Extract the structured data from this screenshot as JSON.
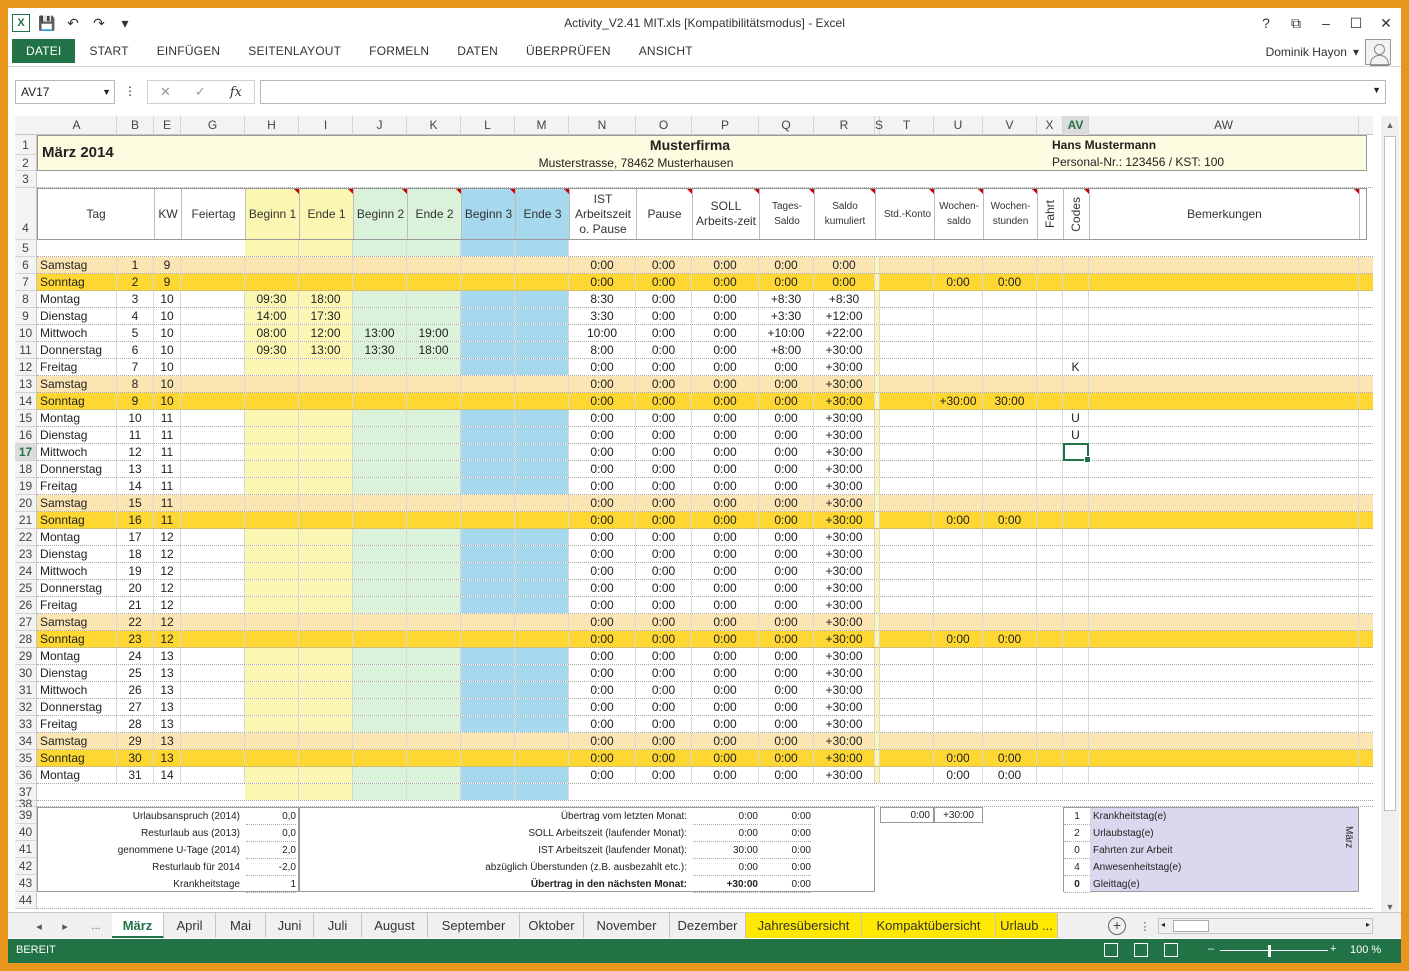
{
  "window": {
    "title": "Activity_V2.41 MIT.xls  [Kompatibilitätsmodus] - Excel",
    "controls": [
      "?",
      "⧉",
      "–",
      "☐",
      "✕"
    ]
  },
  "ribbon": {
    "file_tab": "DATEI",
    "tabs": [
      "START",
      "EINFÜGEN",
      "SEITENLAYOUT",
      "FORMELN",
      "DATEN",
      "ÜBERPRÜFEN",
      "ANSICHT"
    ],
    "user": "Dominik Hayon"
  },
  "formula_bar": {
    "name_box": "AV17",
    "fx": "fx",
    "value": ""
  },
  "columns": [
    "A",
    "B",
    "E",
    "G",
    "H",
    "I",
    "J",
    "K",
    "L",
    "M",
    "N",
    "O",
    "P",
    "Q",
    "R",
    "S",
    "T",
    "U",
    "V",
    "X",
    "AV",
    "AW"
  ],
  "selected_column": "AV",
  "selected_row": "17",
  "header": {
    "month": "März 2014",
    "company": "Musterfirma",
    "address": "Musterstrasse, 78462 Musterhausen",
    "employee": "Hans Mustermann",
    "personnel": "Personal-Nr.: 123456 / KST: 100"
  },
  "table_headers": {
    "tag": "Tag",
    "kw": "KW",
    "feiertag": "Feiertag",
    "beginn1": "Beginn 1",
    "ende1": "Ende 1",
    "beginn2": "Beginn 2",
    "ende2": "Ende 2",
    "beginn3": "Beginn 3",
    "ende3": "Ende 3",
    "ist": "IST Arbeitszeit o. Pause",
    "pause": "Pause",
    "soll": "SOLL Arbeits-zeit",
    "tages": "Tages-Saldo",
    "saldo": "Saldo kumuliert",
    "std": "Std.-Konto",
    "wochensaldo": "Wochen-saldo",
    "wochenstunden": "Wochen-stunden",
    "fahrt": "Fahrt",
    "codes": "Codes",
    "bemerkungen": "Bemerkungen"
  },
  "days": [
    {
      "day": "Samstag",
      "n": "1",
      "kw": "9",
      "b1": "",
      "e1": "",
      "b2": "",
      "e2": "",
      "ist": "0:00",
      "pause": "0:00",
      "soll": "0:00",
      "tages": "0:00",
      "saldo": "0:00",
      "ws": "",
      "wst": "",
      "code": "",
      "type": "sa"
    },
    {
      "day": "Sonntag",
      "n": "2",
      "kw": "9",
      "b1": "",
      "e1": "",
      "b2": "",
      "e2": "",
      "ist": "0:00",
      "pause": "0:00",
      "soll": "0:00",
      "tages": "0:00",
      "saldo": "0:00",
      "ws": "0:00",
      "wst": "0:00",
      "code": "",
      "type": "so"
    },
    {
      "day": "Montag",
      "n": "3",
      "kw": "10",
      "b1": "09:30",
      "e1": "18:00",
      "b2": "",
      "e2": "",
      "ist": "8:30",
      "pause": "0:00",
      "soll": "0:00",
      "tages": "+8:30",
      "saldo": "+8:30",
      "ws": "",
      "wst": "",
      "code": "",
      "type": ""
    },
    {
      "day": "Dienstag",
      "n": "4",
      "kw": "10",
      "b1": "14:00",
      "e1": "17:30",
      "b2": "",
      "e2": "",
      "ist": "3:30",
      "pause": "0:00",
      "soll": "0:00",
      "tages": "+3:30",
      "saldo": "+12:00",
      "ws": "",
      "wst": "",
      "code": "",
      "type": ""
    },
    {
      "day": "Mittwoch",
      "n": "5",
      "kw": "10",
      "b1": "08:00",
      "e1": "12:00",
      "b2": "13:00",
      "e2": "19:00",
      "ist": "10:00",
      "pause": "0:00",
      "soll": "0:00",
      "tages": "+10:00",
      "saldo": "+22:00",
      "ws": "",
      "wst": "",
      "code": "",
      "type": ""
    },
    {
      "day": "Donnerstag",
      "n": "6",
      "kw": "10",
      "b1": "09:30",
      "e1": "13:00",
      "b2": "13:30",
      "e2": "18:00",
      "ist": "8:00",
      "pause": "0:00",
      "soll": "0:00",
      "tages": "+8:00",
      "saldo": "+30:00",
      "ws": "",
      "wst": "",
      "code": "",
      "type": ""
    },
    {
      "day": "Freitag",
      "n": "7",
      "kw": "10",
      "b1": "",
      "e1": "",
      "b2": "",
      "e2": "",
      "ist": "0:00",
      "pause": "0:00",
      "soll": "0:00",
      "tages": "0:00",
      "saldo": "+30:00",
      "ws": "",
      "wst": "",
      "code": "K",
      "type": ""
    },
    {
      "day": "Samstag",
      "n": "8",
      "kw": "10",
      "b1": "",
      "e1": "",
      "b2": "",
      "e2": "",
      "ist": "0:00",
      "pause": "0:00",
      "soll": "0:00",
      "tages": "0:00",
      "saldo": "+30:00",
      "ws": "",
      "wst": "",
      "code": "",
      "type": "sa"
    },
    {
      "day": "Sonntag",
      "n": "9",
      "kw": "10",
      "b1": "",
      "e1": "",
      "b2": "",
      "e2": "",
      "ist": "0:00",
      "pause": "0:00",
      "soll": "0:00",
      "tages": "0:00",
      "saldo": "+30:00",
      "ws": "+30:00",
      "wst": "30:00",
      "code": "",
      "type": "so"
    },
    {
      "day": "Montag",
      "n": "10",
      "kw": "11",
      "b1": "",
      "e1": "",
      "b2": "",
      "e2": "",
      "ist": "0:00",
      "pause": "0:00",
      "soll": "0:00",
      "tages": "0:00",
      "saldo": "+30:00",
      "ws": "",
      "wst": "",
      "code": "U",
      "type": ""
    },
    {
      "day": "Dienstag",
      "n": "11",
      "kw": "11",
      "b1": "",
      "e1": "",
      "b2": "",
      "e2": "",
      "ist": "0:00",
      "pause": "0:00",
      "soll": "0:00",
      "tages": "0:00",
      "saldo": "+30:00",
      "ws": "",
      "wst": "",
      "code": "U",
      "type": ""
    },
    {
      "day": "Mittwoch",
      "n": "12",
      "kw": "11",
      "b1": "",
      "e1": "",
      "b2": "",
      "e2": "",
      "ist": "0:00",
      "pause": "0:00",
      "soll": "0:00",
      "tages": "0:00",
      "saldo": "+30:00",
      "ws": "",
      "wst": "",
      "code": "",
      "type": ""
    },
    {
      "day": "Donnerstag",
      "n": "13",
      "kw": "11",
      "b1": "",
      "e1": "",
      "b2": "",
      "e2": "",
      "ist": "0:00",
      "pause": "0:00",
      "soll": "0:00",
      "tages": "0:00",
      "saldo": "+30:00",
      "ws": "",
      "wst": "",
      "code": "",
      "type": ""
    },
    {
      "day": "Freitag",
      "n": "14",
      "kw": "11",
      "b1": "",
      "e1": "",
      "b2": "",
      "e2": "",
      "ist": "0:00",
      "pause": "0:00",
      "soll": "0:00",
      "tages": "0:00",
      "saldo": "+30:00",
      "ws": "",
      "wst": "",
      "code": "",
      "type": ""
    },
    {
      "day": "Samstag",
      "n": "15",
      "kw": "11",
      "b1": "",
      "e1": "",
      "b2": "",
      "e2": "",
      "ist": "0:00",
      "pause": "0:00",
      "soll": "0:00",
      "tages": "0:00",
      "saldo": "+30:00",
      "ws": "",
      "wst": "",
      "code": "",
      "type": "sa"
    },
    {
      "day": "Sonntag",
      "n": "16",
      "kw": "11",
      "b1": "",
      "e1": "",
      "b2": "",
      "e2": "",
      "ist": "0:00",
      "pause": "0:00",
      "soll": "0:00",
      "tages": "0:00",
      "saldo": "+30:00",
      "ws": "0:00",
      "wst": "0:00",
      "code": "",
      "type": "so"
    },
    {
      "day": "Montag",
      "n": "17",
      "kw": "12",
      "b1": "",
      "e1": "",
      "b2": "",
      "e2": "",
      "ist": "0:00",
      "pause": "0:00",
      "soll": "0:00",
      "tages": "0:00",
      "saldo": "+30:00",
      "ws": "",
      "wst": "",
      "code": "",
      "type": ""
    },
    {
      "day": "Dienstag",
      "n": "18",
      "kw": "12",
      "b1": "",
      "e1": "",
      "b2": "",
      "e2": "",
      "ist": "0:00",
      "pause": "0:00",
      "soll": "0:00",
      "tages": "0:00",
      "saldo": "+30:00",
      "ws": "",
      "wst": "",
      "code": "",
      "type": ""
    },
    {
      "day": "Mittwoch",
      "n": "19",
      "kw": "12",
      "b1": "",
      "e1": "",
      "b2": "",
      "e2": "",
      "ist": "0:00",
      "pause": "0:00",
      "soll": "0:00",
      "tages": "0:00",
      "saldo": "+30:00",
      "ws": "",
      "wst": "",
      "code": "",
      "type": ""
    },
    {
      "day": "Donnerstag",
      "n": "20",
      "kw": "12",
      "b1": "",
      "e1": "",
      "b2": "",
      "e2": "",
      "ist": "0:00",
      "pause": "0:00",
      "soll": "0:00",
      "tages": "0:00",
      "saldo": "+30:00",
      "ws": "",
      "wst": "",
      "code": "",
      "type": ""
    },
    {
      "day": "Freitag",
      "n": "21",
      "kw": "12",
      "b1": "",
      "e1": "",
      "b2": "",
      "e2": "",
      "ist": "0:00",
      "pause": "0:00",
      "soll": "0:00",
      "tages": "0:00",
      "saldo": "+30:00",
      "ws": "",
      "wst": "",
      "code": "",
      "type": ""
    },
    {
      "day": "Samstag",
      "n": "22",
      "kw": "12",
      "b1": "",
      "e1": "",
      "b2": "",
      "e2": "",
      "ist": "0:00",
      "pause": "0:00",
      "soll": "0:00",
      "tages": "0:00",
      "saldo": "+30:00",
      "ws": "",
      "wst": "",
      "code": "",
      "type": "sa"
    },
    {
      "day": "Sonntag",
      "n": "23",
      "kw": "12",
      "b1": "",
      "e1": "",
      "b2": "",
      "e2": "",
      "ist": "0:00",
      "pause": "0:00",
      "soll": "0:00",
      "tages": "0:00",
      "saldo": "+30:00",
      "ws": "0:00",
      "wst": "0:00",
      "code": "",
      "type": "so"
    },
    {
      "day": "Montag",
      "n": "24",
      "kw": "13",
      "b1": "",
      "e1": "",
      "b2": "",
      "e2": "",
      "ist": "0:00",
      "pause": "0:00",
      "soll": "0:00",
      "tages": "0:00",
      "saldo": "+30:00",
      "ws": "",
      "wst": "",
      "code": "",
      "type": ""
    },
    {
      "day": "Dienstag",
      "n": "25",
      "kw": "13",
      "b1": "",
      "e1": "",
      "b2": "",
      "e2": "",
      "ist": "0:00",
      "pause": "0:00",
      "soll": "0:00",
      "tages": "0:00",
      "saldo": "+30:00",
      "ws": "",
      "wst": "",
      "code": "",
      "type": ""
    },
    {
      "day": "Mittwoch",
      "n": "26",
      "kw": "13",
      "b1": "",
      "e1": "",
      "b2": "",
      "e2": "",
      "ist": "0:00",
      "pause": "0:00",
      "soll": "0:00",
      "tages": "0:00",
      "saldo": "+30:00",
      "ws": "",
      "wst": "",
      "code": "",
      "type": ""
    },
    {
      "day": "Donnerstag",
      "n": "27",
      "kw": "13",
      "b1": "",
      "e1": "",
      "b2": "",
      "e2": "",
      "ist": "0:00",
      "pause": "0:00",
      "soll": "0:00",
      "tages": "0:00",
      "saldo": "+30:00",
      "ws": "",
      "wst": "",
      "code": "",
      "type": ""
    },
    {
      "day": "Freitag",
      "n": "28",
      "kw": "13",
      "b1": "",
      "e1": "",
      "b2": "",
      "e2": "",
      "ist": "0:00",
      "pause": "0:00",
      "soll": "0:00",
      "tages": "0:00",
      "saldo": "+30:00",
      "ws": "",
      "wst": "",
      "code": "",
      "type": ""
    },
    {
      "day": "Samstag",
      "n": "29",
      "kw": "13",
      "b1": "",
      "e1": "",
      "b2": "",
      "e2": "",
      "ist": "0:00",
      "pause": "0:00",
      "soll": "0:00",
      "tages": "0:00",
      "saldo": "+30:00",
      "ws": "",
      "wst": "",
      "code": "",
      "type": "sa"
    },
    {
      "day": "Sonntag",
      "n": "30",
      "kw": "13",
      "b1": "",
      "e1": "",
      "b2": "",
      "e2": "",
      "ist": "0:00",
      "pause": "0:00",
      "soll": "0:00",
      "tages": "0:00",
      "saldo": "+30:00",
      "ws": "0:00",
      "wst": "0:00",
      "code": "",
      "type": "so"
    },
    {
      "day": "Montag",
      "n": "31",
      "kw": "14",
      "b1": "",
      "e1": "",
      "b2": "",
      "e2": "",
      "ist": "0:00",
      "pause": "0:00",
      "soll": "0:00",
      "tages": "0:00",
      "saldo": "+30:00",
      "ws": "0:00",
      "wst": "0:00",
      "code": "",
      "type": ""
    }
  ],
  "summary": {
    "left": [
      {
        "label": "Urlaubsanspruch (2014)",
        "value": "0,0"
      },
      {
        "label": "Resturlaub aus (2013)",
        "value": "0,0"
      },
      {
        "label": "genommene U-Tage (2014)",
        "value": "2,0"
      },
      {
        "label": "Resturlaub für 2014",
        "value": "-2,0"
      },
      {
        "label": "Krankheitstage",
        "value": "1"
      }
    ],
    "middle": [
      {
        "label": "Übertrag vom letzten Monat:",
        "v1": "0:00",
        "v2": "0:00",
        "bold": false
      },
      {
        "label": "SOLL Arbeitszeit (laufender Monat):",
        "v1": "0:00",
        "v2": "0:00",
        "bold": false
      },
      {
        "label": "IST Arbeitszeit (laufender Monat):",
        "v1": "30:00",
        "v2": "0:00",
        "bold": false
      },
      {
        "label": "abzüglich Überstunden (z.B. ausbezahlt etc.):",
        "v1": "0:00",
        "v2": "0:00",
        "bold": false
      },
      {
        "label": "Übertrag in den nächsten Monat:",
        "v1": "+30:00",
        "v2": "0:00",
        "bold": true
      }
    ],
    "right_totals": {
      "std": "0:00",
      "ws": "+30:00"
    },
    "legend": [
      {
        "n": "1",
        "label": "Krankheitstag(e)"
      },
      {
        "n": "2",
        "label": "Urlaubstag(e)"
      },
      {
        "n": "0",
        "label": "Fahrten zur Arbeit"
      },
      {
        "n": "4",
        "label": "Anwesenheitstag(e)"
      },
      {
        "n": "0",
        "label": "Gleittag(e)"
      }
    ],
    "legend_side": "März"
  },
  "sheet_tabs": [
    "März",
    "April",
    "Mai",
    "Juni",
    "Juli",
    "August",
    "September",
    "Oktober",
    "November",
    "Dezember",
    "Jahresübersicht",
    "Kompaktübersicht",
    "Urlaub ..."
  ],
  "active_tab": "März",
  "status": {
    "ready": "BEREIT",
    "zoom": "100 %"
  }
}
